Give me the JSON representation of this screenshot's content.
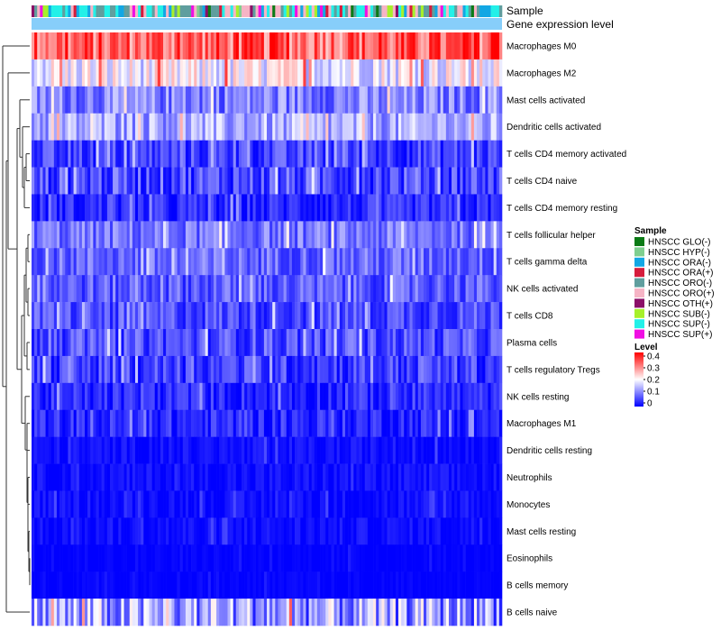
{
  "chart_data": {
    "type": "heatmap",
    "title": "",
    "n_samples": 168,
    "rows": [
      "Macrophages M0",
      "Macrophages M2",
      "Mast cells activated",
      "Dendritic cells activated",
      "T cells CD4 memory activated",
      "T cells CD4 naive",
      "T cells CD4 memory resting",
      "T cells follicular helper",
      "T cells gamma delta",
      "NK cells activated",
      "T cells CD8",
      "Plasma cells",
      "T cells regulatory  Tregs",
      "NK cells resting",
      "Macrophages M1",
      "Dendritic cells resting",
      "Neutrophils",
      "Monocytes",
      "Mast cells resting",
      "Eosinophils",
      "B cells memory",
      "B cells naive"
    ],
    "row_mean_level": [
      0.32,
      0.19,
      0.1,
      0.13,
      0.05,
      0.06,
      0.03,
      0.09,
      0.08,
      0.07,
      0.06,
      0.06,
      0.05,
      0.03,
      0.03,
      0.01,
      0.01,
      0.01,
      0.01,
      0.0,
      0.0,
      0.12
    ],
    "row_spread": [
      0.08,
      0.07,
      0.06,
      0.06,
      0.05,
      0.06,
      0.04,
      0.05,
      0.05,
      0.05,
      0.05,
      0.05,
      0.05,
      0.04,
      0.04,
      0.02,
      0.02,
      0.02,
      0.02,
      0.01,
      0.01,
      0.1
    ],
    "top_annotations": [
      {
        "label": "Sample"
      },
      {
        "label": "Gene expression level"
      }
    ],
    "sample_annotation_color": "#87cefa",
    "legend_sample": {
      "title": "Sample",
      "items": [
        {
          "label": "HNSCC GLO(-)",
          "color": "#0b7b16"
        },
        {
          "label": "HNSCC HYP(-)",
          "color": "#7fcf8f"
        },
        {
          "label": "HNSCC ORA(-)",
          "color": "#12a7e4"
        },
        {
          "label": "HNSCC ORA(+)",
          "color": "#d61c3c"
        },
        {
          "label": "HNSCC ORO(-)",
          "color": "#5f9e9e"
        },
        {
          "label": "HNSCC ORO(+)",
          "color": "#f6b4c5"
        },
        {
          "label": "HNSCC OTH(+)",
          "color": "#8b0f68"
        },
        {
          "label": "HNSCC SUB(-)",
          "color": "#a6f02a"
        },
        {
          "label": "HNSCC SUP(-)",
          "color": "#23f0e8"
        },
        {
          "label": "HNSCC SUP(+)",
          "color": "#f00fe3"
        }
      ]
    },
    "legend_level": {
      "title": "Level",
      "ticks": [
        "0.4",
        "0.3",
        "0.2",
        "0.1",
        "0"
      ],
      "tick_values": [
        0.4,
        0.3,
        0.2,
        0.1,
        0
      ],
      "colors": [
        "#ff0000",
        "#ffffff",
        "#0000ff"
      ]
    }
  }
}
